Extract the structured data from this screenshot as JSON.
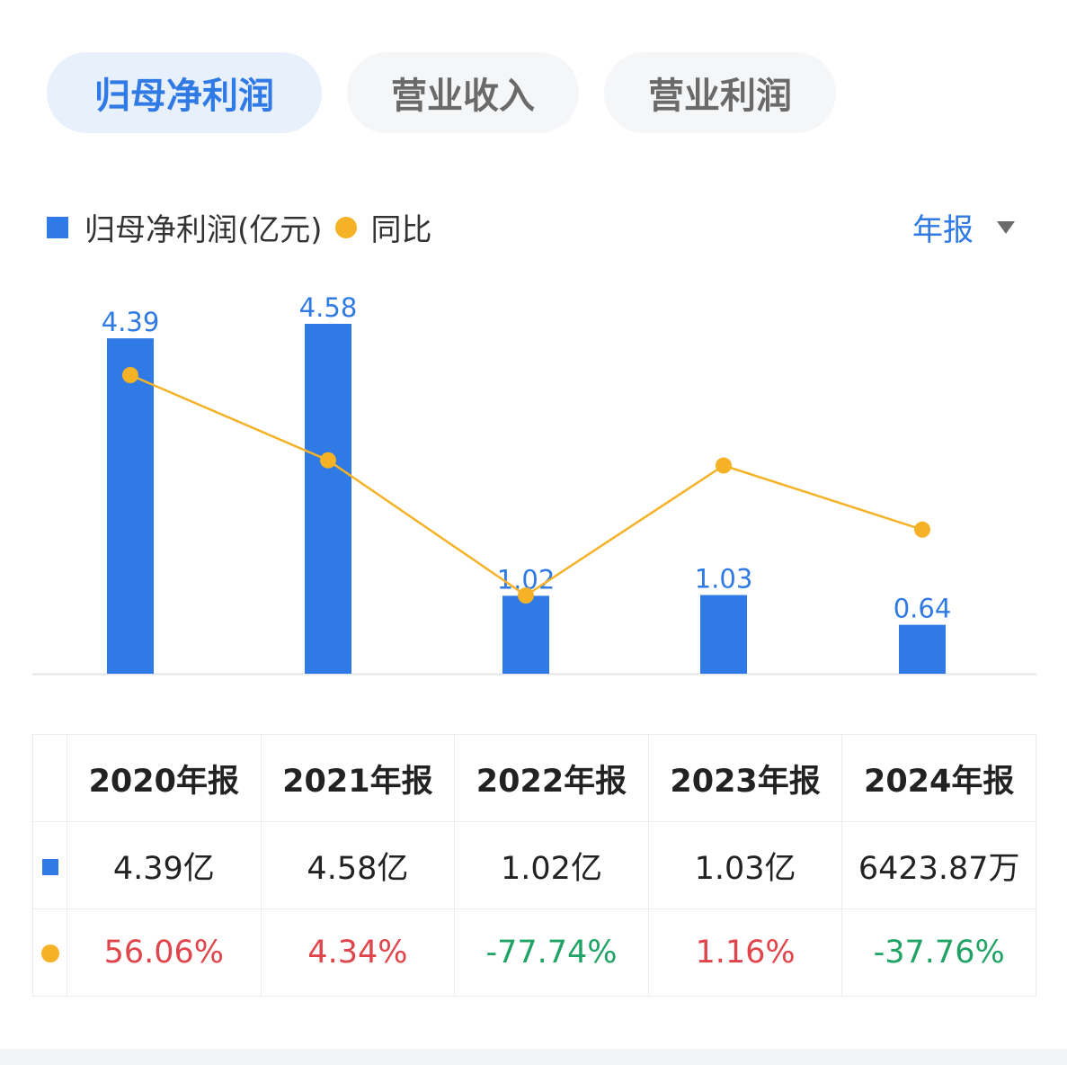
{
  "tabs": [
    {
      "label": "归母净利润",
      "active": true
    },
    {
      "label": "营业收入",
      "active": false
    },
    {
      "label": "营业利润",
      "active": false
    }
  ],
  "legend": {
    "bar_label": "归母净利润(亿元)",
    "line_label": "同比"
  },
  "period_selector": {
    "label": "年报"
  },
  "colors": {
    "bar": "#2f7ae5",
    "line": "#f5b226",
    "positive": "#e0454b",
    "negative": "#21a366"
  },
  "chart_data": {
    "type": "bar",
    "categories": [
      "2020年报",
      "2021年报",
      "2022年报",
      "2023年报",
      "2024年报"
    ],
    "series": [
      {
        "name": "归母净利润(亿元)",
        "type": "bar",
        "values": [
          4.39,
          4.58,
          1.02,
          1.03,
          0.64
        ],
        "value_labels": [
          "4.39",
          "4.58",
          "1.02",
          "1.03",
          "0.64"
        ]
      },
      {
        "name": "同比",
        "type": "line",
        "values": [
          56.06,
          4.34,
          -77.74,
          1.16,
          -37.76
        ]
      }
    ],
    "legend_position": "top-left",
    "grid": false
  },
  "table": {
    "headers": [
      "2020年报",
      "2021年报",
      "2022年报",
      "2023年报",
      "2024年报"
    ],
    "values": [
      "4.39亿",
      "4.58亿",
      "1.02亿",
      "1.03亿",
      "6423.87万"
    ],
    "yoy": [
      "56.06%",
      "4.34%",
      "-77.74%",
      "1.16%",
      "-37.76%"
    ]
  }
}
